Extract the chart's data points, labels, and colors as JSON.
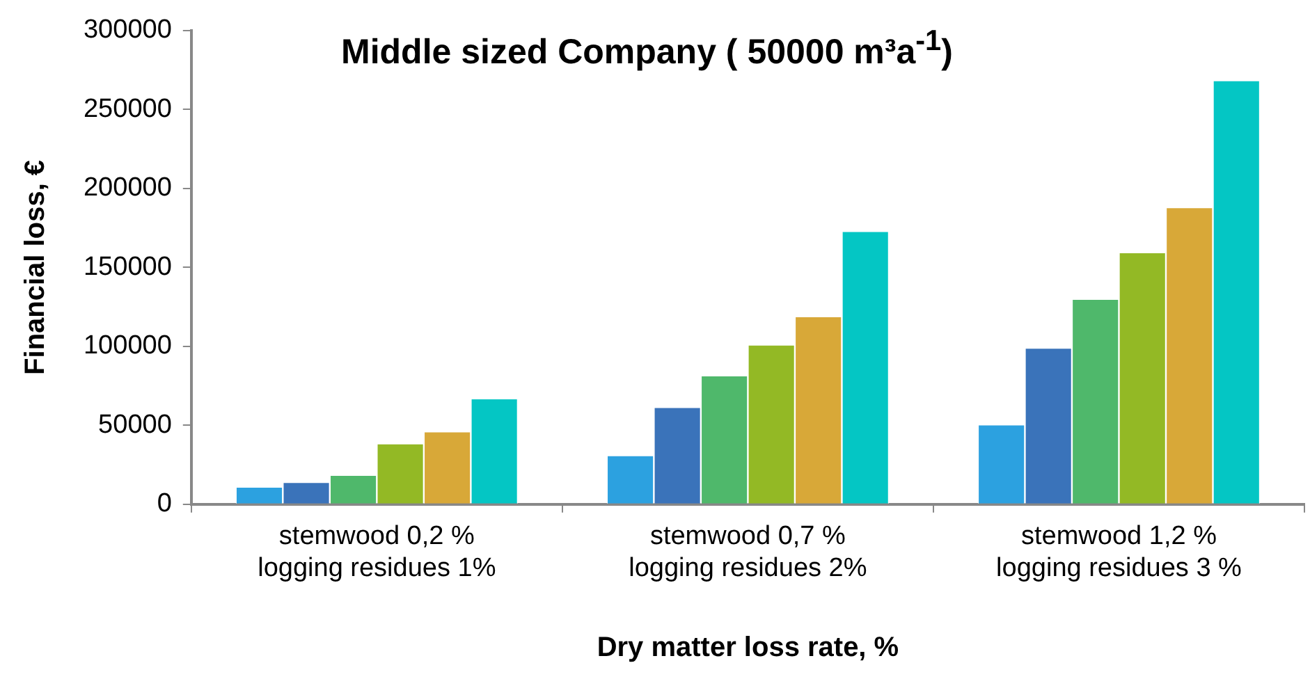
{
  "chart_data": {
    "type": "bar",
    "title": "Middle sized Company ( 50000 m³a$^{-1}$)",
    "xlabel": "Dry matter loss rate, %",
    "ylabel": "Financial loss, €",
    "categories": [
      "stemwood 0,2 %\nlogging residues 1%",
      "stemwood 0,7 %\nlogging residues 2%",
      "stemwood 1,2 %\nlogging residues 3 %"
    ],
    "series": [
      {
        "color": "#2ca1e0",
        "values": [
          11000,
          31000,
          50500
        ]
      },
      {
        "color": "#3a73ba",
        "values": [
          14000,
          61500,
          99000
        ]
      },
      {
        "color": "#4fb86b",
        "values": [
          18500,
          81500,
          130000
        ]
      },
      {
        "color": "#93b925",
        "values": [
          38500,
          101000,
          159500
        ]
      },
      {
        "color": "#d8a838",
        "values": [
          46000,
          119000,
          188000
        ]
      },
      {
        "color": "#04c6c4",
        "values": [
          67000,
          173000,
          268500
        ]
      }
    ],
    "ylim": [
      0,
      300000
    ],
    "yticks": [
      0,
      50000,
      100000,
      150000,
      200000,
      250000,
      300000
    ],
    "grid": false,
    "legend": false
  }
}
